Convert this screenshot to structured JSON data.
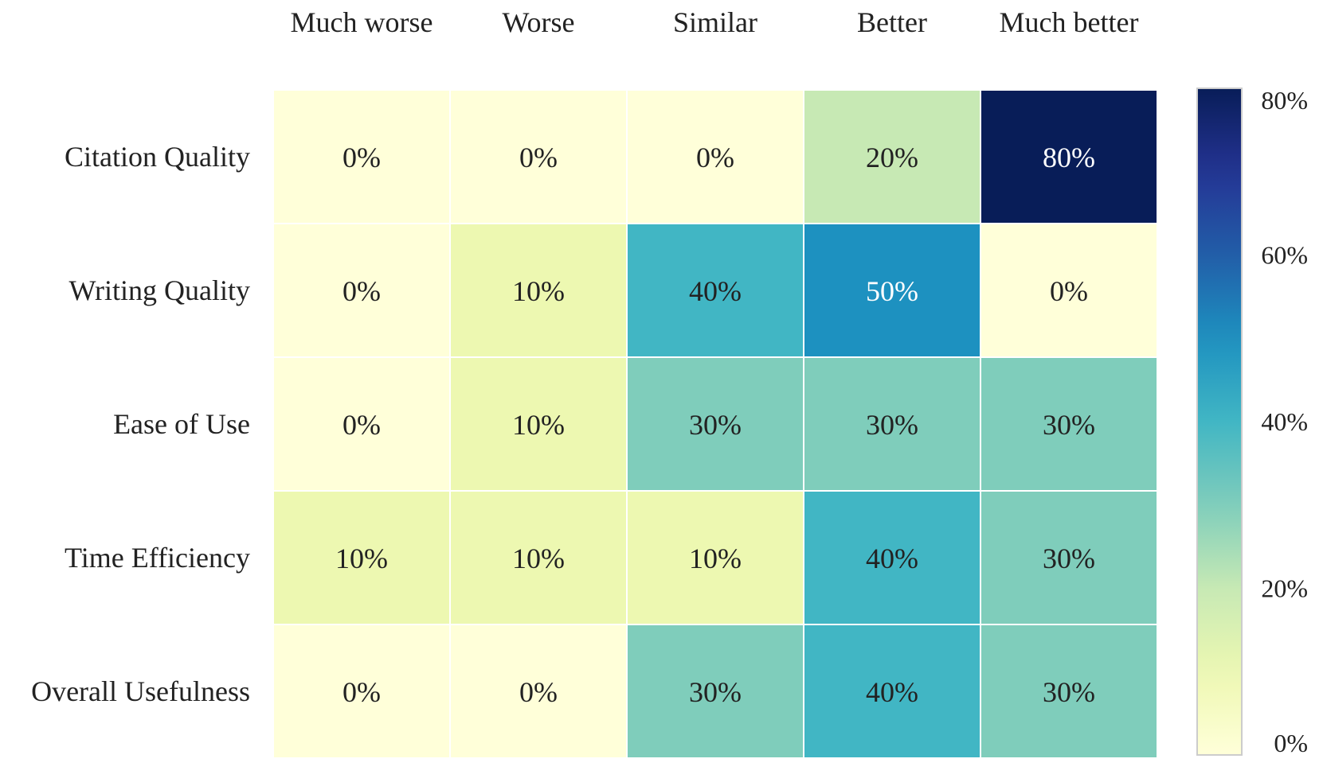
{
  "chart_data": {
    "type": "heatmap",
    "title": "",
    "xlabel": "",
    "ylabel": "",
    "columns": [
      "Much worse",
      "Worse",
      "Similar",
      "Better",
      "Much better"
    ],
    "rows": [
      "Citation Quality",
      "Writing Quality",
      "Ease of Use",
      "Time Efficiency",
      "Overall Usefulness"
    ],
    "values": [
      [
        0,
        0,
        0,
        20,
        80
      ],
      [
        0,
        10,
        40,
        50,
        0
      ],
      [
        0,
        10,
        30,
        30,
        30
      ],
      [
        10,
        10,
        10,
        40,
        30
      ],
      [
        0,
        0,
        30,
        40,
        30
      ]
    ],
    "cell_labels": [
      [
        "0%",
        "0%",
        "0%",
        "20%",
        "80%"
      ],
      [
        "0%",
        "10%",
        "40%",
        "50%",
        "0%"
      ],
      [
        "0%",
        "10%",
        "30%",
        "30%",
        "30%"
      ],
      [
        "10%",
        "10%",
        "10%",
        "40%",
        "30%"
      ],
      [
        "0%",
        "0%",
        "30%",
        "40%",
        "30%"
      ]
    ],
    "colorbar": {
      "range": [
        0,
        80
      ],
      "ticks": [
        0,
        20,
        40,
        60,
        80
      ],
      "tick_labels": [
        "0%",
        "20%",
        "40%",
        "60%",
        "80%"
      ],
      "colormap": "YlGnBu"
    },
    "legend": "colorbar-right",
    "grid": false
  }
}
